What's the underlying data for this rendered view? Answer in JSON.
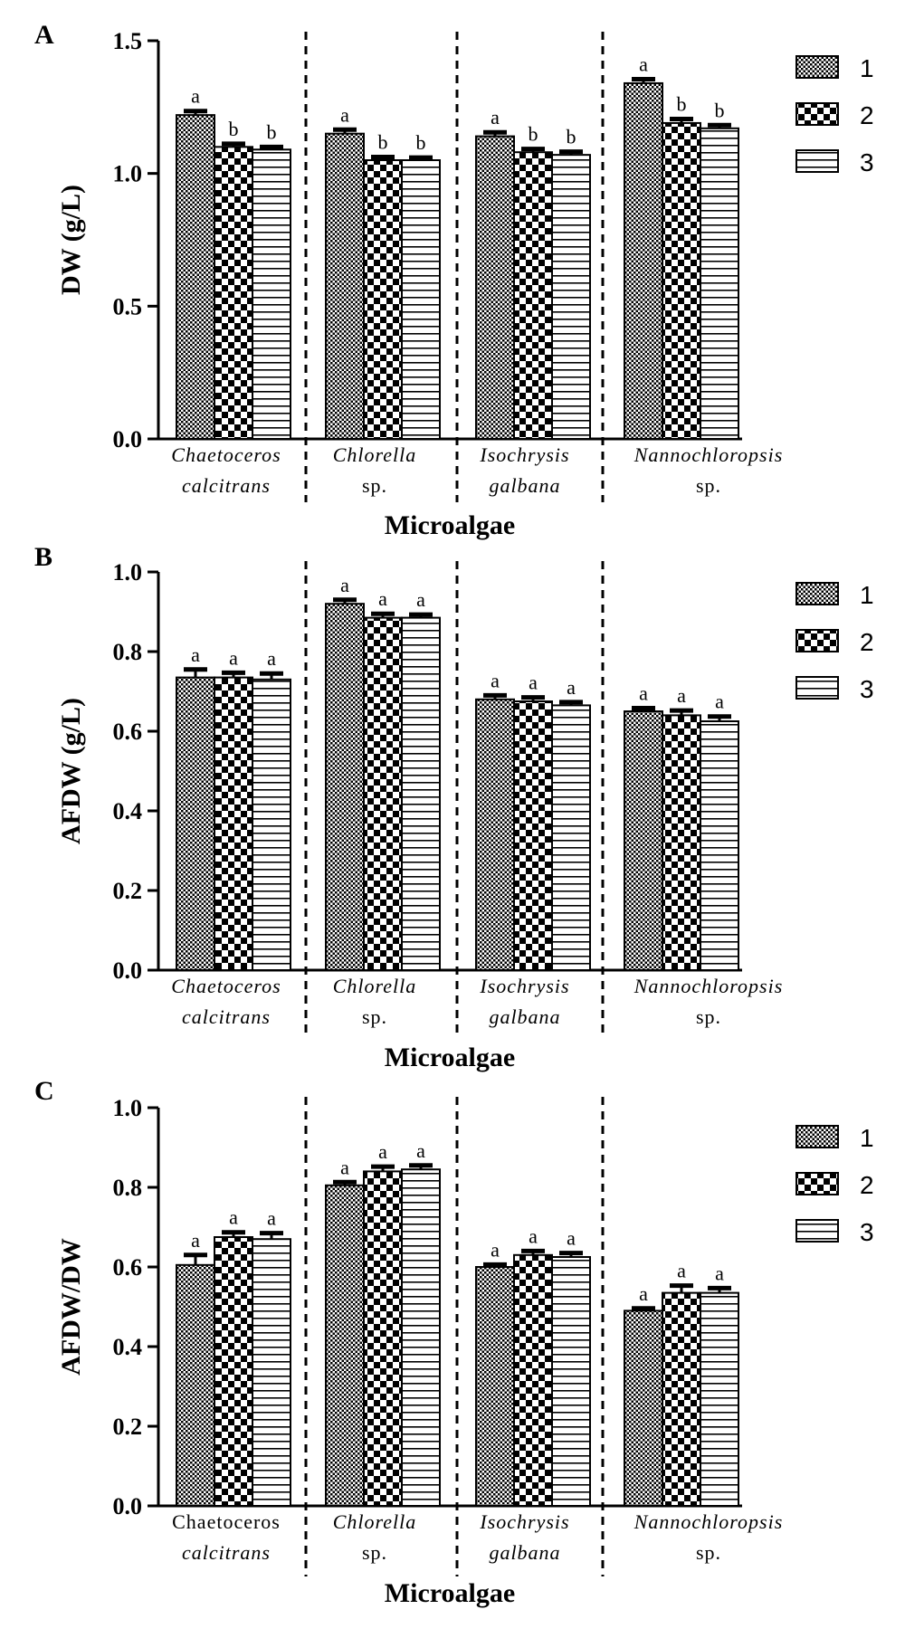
{
  "legend": {
    "series": [
      {
        "label": "1",
        "pattern": "dots"
      },
      {
        "label": "2",
        "pattern": "checker"
      },
      {
        "label": "3",
        "pattern": "stripes"
      }
    ]
  },
  "colors": {
    "ink": "#000000",
    "background": "#ffffff"
  },
  "chart_data": [
    {
      "type": "bar",
      "panel": "A",
      "title": "",
      "ylabel": "DW (g/L)",
      "xlabel": "Microalgae",
      "ylim": [
        0,
        1.5
      ],
      "yticks": [
        0.0,
        0.5,
        1.0,
        1.5
      ],
      "ytick_labels": [
        "0.0",
        "0.5",
        "1.0",
        "1.5"
      ],
      "categories": [
        {
          "line1": "Chaetoceros",
          "line2": "calcitrans",
          "italic1": true,
          "italic2": true
        },
        {
          "line1": "Chlorella",
          "line2": "sp.",
          "italic1": true,
          "italic2": false
        },
        {
          "line1": "Isochrysis",
          "line2": "galbana",
          "italic1": true,
          "italic2": true
        },
        {
          "line1": "Nannochloropsis",
          "line2": "sp.",
          "italic1": true,
          "italic2": false
        }
      ],
      "series": [
        {
          "name": "1",
          "values": [
            1.22,
            1.15,
            1.14,
            1.34
          ],
          "errors": [
            0.015,
            0.015,
            0.015,
            0.015
          ],
          "letters": [
            "a",
            "a",
            "a",
            "a"
          ]
        },
        {
          "name": "2",
          "values": [
            1.1,
            1.05,
            1.08,
            1.19
          ],
          "errors": [
            0.012,
            0.012,
            0.012,
            0.015
          ],
          "letters": [
            "b",
            "b",
            "b",
            "b"
          ]
        },
        {
          "name": "3",
          "values": [
            1.09,
            1.05,
            1.07,
            1.17
          ],
          "errors": [
            0.01,
            0.01,
            0.012,
            0.012
          ],
          "letters": [
            "b",
            "b",
            "b",
            "b"
          ]
        }
      ]
    },
    {
      "type": "bar",
      "panel": "B",
      "title": "",
      "ylabel": "AFDW (g/L)",
      "xlabel": "Microalgae",
      "ylim": [
        0,
        1.0
      ],
      "yticks": [
        0.0,
        0.2,
        0.4,
        0.6,
        0.8,
        1.0
      ],
      "ytick_labels": [
        "0.0",
        "0.2",
        "0.4",
        "0.6",
        "0.8",
        "1.0"
      ],
      "categories": [
        {
          "line1": "Chaetoceros",
          "line2": "calcitrans",
          "italic1": true,
          "italic2": true
        },
        {
          "line1": "Chlorella",
          "line2": "sp.",
          "italic1": true,
          "italic2": false
        },
        {
          "line1": "Isochrysis",
          "line2": "galbana",
          "italic1": true,
          "italic2": true
        },
        {
          "line1": "Nannochloropsis",
          "line2": "sp.",
          "italic1": true,
          "italic2": false
        }
      ],
      "series": [
        {
          "name": "1",
          "values": [
            0.735,
            0.92,
            0.68,
            0.65
          ],
          "errors": [
            0.02,
            0.01,
            0.01,
            0.008
          ],
          "letters": [
            "a",
            "a",
            "a",
            "a"
          ]
        },
        {
          "name": "2",
          "values": [
            0.735,
            0.885,
            0.675,
            0.64
          ],
          "errors": [
            0.012,
            0.01,
            0.01,
            0.012
          ],
          "letters": [
            "a",
            "a",
            "a",
            "a"
          ]
        },
        {
          "name": "3",
          "values": [
            0.73,
            0.885,
            0.665,
            0.625
          ],
          "errors": [
            0.015,
            0.008,
            0.008,
            0.012
          ],
          "letters": [
            "a",
            "a",
            "a",
            "a"
          ]
        }
      ]
    },
    {
      "type": "bar",
      "panel": "C",
      "title": "",
      "ylabel": "AFDW/DW",
      "xlabel": "Microalgae",
      "ylim": [
        0,
        1.0
      ],
      "yticks": [
        0.0,
        0.2,
        0.4,
        0.6,
        0.8,
        1.0
      ],
      "ytick_labels": [
        "0.0",
        "0.2",
        "0.4",
        "0.6",
        "0.8",
        "1.0"
      ],
      "categories": [
        {
          "line1": "Chaetoceros",
          "line2": "calcitrans",
          "italic1": false,
          "italic2": true
        },
        {
          "line1": "Chlorella",
          "line2": "sp.",
          "italic1": true,
          "italic2": false
        },
        {
          "line1": "Isochrysis",
          "line2": "galbana",
          "italic1": true,
          "italic2": true
        },
        {
          "line1": "Nannochloropsis",
          "line2": "sp.",
          "italic1": true,
          "italic2": false
        }
      ],
      "series": [
        {
          "name": "1",
          "values": [
            0.605,
            0.805,
            0.6,
            0.49
          ],
          "errors": [
            0.025,
            0.008,
            0.006,
            0.006
          ],
          "letters": [
            "a",
            "a",
            "a",
            "a"
          ]
        },
        {
          "name": "2",
          "values": [
            0.675,
            0.84,
            0.63,
            0.535
          ],
          "errors": [
            0.012,
            0.012,
            0.01,
            0.018
          ],
          "letters": [
            "a",
            "a",
            "a",
            "a"
          ]
        },
        {
          "name": "3",
          "values": [
            0.67,
            0.845,
            0.625,
            0.535
          ],
          "errors": [
            0.015,
            0.01,
            0.01,
            0.012
          ],
          "letters": [
            "a",
            "a",
            "a",
            "a"
          ]
        }
      ]
    }
  ]
}
